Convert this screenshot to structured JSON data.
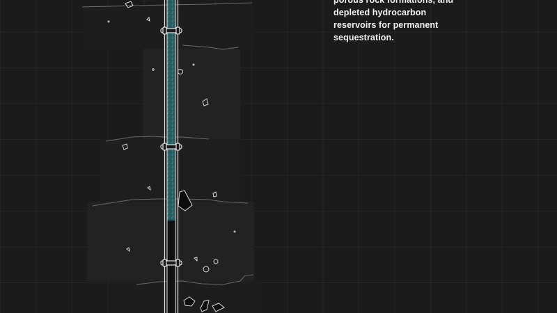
{
  "caption": {
    "lines": [
      "porous rock formations, and",
      "depleted hydrocarbon",
      "reservoirs for permanent",
      "sequestration."
    ]
  },
  "diagram": {
    "well": {
      "name": "injection-well",
      "co2_fill_color": "#2f6b70",
      "casing_color": "#e6e6e6"
    },
    "colors": {
      "background": "#1c1b1c",
      "grid": "#2a292a",
      "strata_line": "#6a6a6a",
      "rock_outline": "#d8d8d8"
    }
  }
}
